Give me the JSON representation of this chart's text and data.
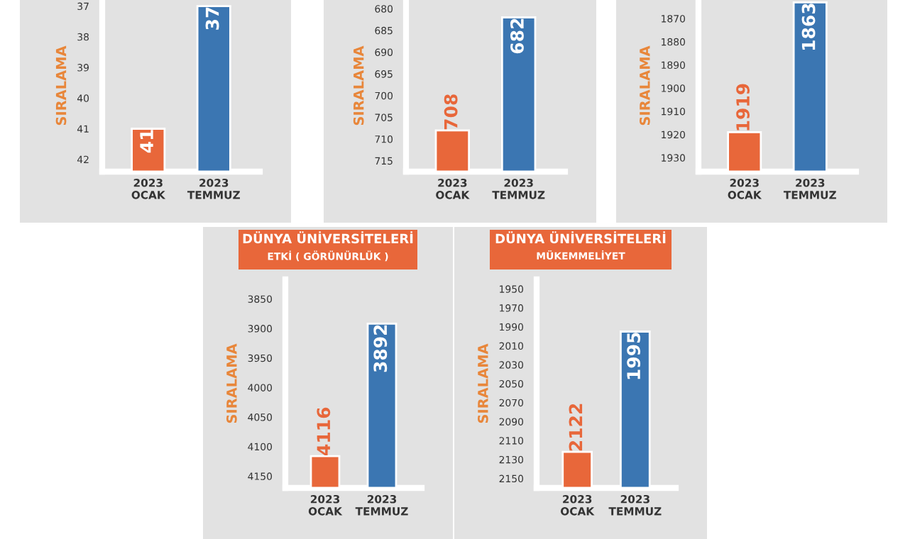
{
  "chart_data": [
    {
      "type": "bar",
      "ylabel": "SIRALAMA",
      "categories": [
        "2023\nOCAK",
        "2023\nTEMMUZ"
      ],
      "base": [
        42.4,
        42.4
      ],
      "values": [
        -1.4,
        -5.4
      ],
      "value_labels": [
        "41",
        "37"
      ],
      "colors": [
        "#e8673a",
        "#3b76b2"
      ],
      "ylim": [
        42.4,
        36.8
      ],
      "yticks": [
        37,
        38,
        39,
        40,
        41,
        42
      ]
    },
    {
      "type": "bar",
      "ylabel": "SIRALAMA",
      "categories": [
        "2023\nOCAK",
        "2023\nTEMMUZ"
      ],
      "base": [
        717.5,
        717.5
      ],
      "values": [
        -9.5,
        -35.5
      ],
      "value_labels": [
        "708",
        "682"
      ],
      "colors": [
        "#e8673a",
        "#3b76b2"
      ],
      "ylim": [
        717.5,
        678
      ],
      "yticks": [
        680,
        685,
        690,
        695,
        700,
        705,
        710,
        715
      ]
    },
    {
      "type": "bar",
      "ylabel": "SIRALAMA",
      "categories": [
        "2023\nOCAK",
        "2023\nTEMMUZ"
      ],
      "base": [
        1936,
        1936
      ],
      "values": [
        -17,
        -73
      ],
      "value_labels": [
        "1919",
        "1863"
      ],
      "colors": [
        "#e8673a",
        "#3b76b2"
      ],
      "ylim": [
        1936,
        1862
      ],
      "yticks": [
        1870,
        1880,
        1890,
        1900,
        1910,
        1920,
        1930
      ]
    },
    {
      "type": "bar",
      "title": "DÜNYA ÜNİVERSİTELERİ",
      "subtitle": "ETKİ ( GÖRÜNÜRLÜK )",
      "ylabel": "SIRALAMA",
      "categories": [
        "2023\nOCAK",
        "2023\nTEMMUZ"
      ],
      "base": [
        4170,
        4170
      ],
      "values": [
        -54,
        -278
      ],
      "value_labels": [
        "4116",
        "3892"
      ],
      "colors": [
        "#e8673a",
        "#3b76b2"
      ],
      "ylim": [
        4170,
        3817
      ],
      "yticks": [
        3850,
        3900,
        3950,
        4000,
        4050,
        4100,
        4150
      ]
    },
    {
      "type": "bar",
      "title": "DÜNYA ÜNİVERSİTELERİ",
      "subtitle": "MÜKEMMELİYET",
      "ylabel": "SIRALAMA",
      "categories": [
        "2023\nOCAK",
        "2023\nTEMMUZ"
      ],
      "base": [
        2160,
        2160
      ],
      "values": [
        -38,
        -165
      ],
      "value_labels": [
        "2122",
        "1995"
      ],
      "colors": [
        "#e8673a",
        "#3b76b2"
      ],
      "ylim": [
        2160,
        1940
      ],
      "yticks": [
        1950,
        1970,
        1990,
        2010,
        2030,
        2050,
        2070,
        2090,
        2110,
        2130,
        2150
      ]
    }
  ]
}
